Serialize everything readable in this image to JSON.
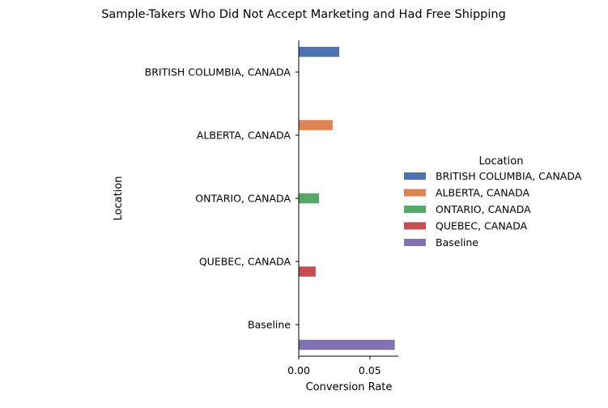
{
  "chart_data": {
    "type": "bar",
    "orientation": "horizontal",
    "title": "Sample-Takers Who Did Not Accept Marketing and Had Free Shipping",
    "xlabel": "Conversion Rate",
    "ylabel": "Location",
    "xlim": [
      0,
      0.07
    ],
    "xticks": [
      {
        "value": 0,
        "label": "0.00"
      },
      {
        "value": 0.05,
        "label": "0.05"
      }
    ],
    "categories": [
      "BRITISH COLUMBIA, CANADA",
      "ALBERTA, CANADA",
      "ONTARIO, CANADA",
      "QUEBEC, CANADA",
      "Baseline"
    ],
    "legend": {
      "title": "Location",
      "placement": "right"
    },
    "series": [
      {
        "name": "BRITISH COLUMBIA, CANADA",
        "color": "#4c72b0",
        "values": [
          0.0285,
          0,
          0,
          0,
          0
        ]
      },
      {
        "name": "ALBERTA, CANADA",
        "color": "#dd8452",
        "values": [
          0,
          0.0238,
          0,
          0,
          0
        ]
      },
      {
        "name": "ONTARIO, CANADA",
        "color": "#55a868",
        "values": [
          0,
          0,
          0.0143,
          0,
          0
        ]
      },
      {
        "name": "QUEBEC, CANADA",
        "color": "#c44e52",
        "values": [
          0,
          0,
          0,
          0.0119,
          0
        ]
      },
      {
        "name": "Baseline",
        "color": "#8172b3",
        "values": [
          0,
          0,
          0,
          0,
          0.0675
        ]
      }
    ],
    "grid": false
  }
}
